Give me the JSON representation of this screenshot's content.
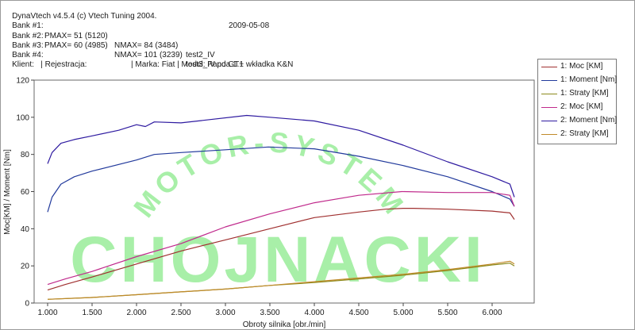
{
  "header": {
    "app_line": "DynaVtech v4.5.4 (c) Vtech Tuning 2004.",
    "date": "2009-05-08",
    "bank1": {
      "label": "Bank #1:",
      "pmax": "PMAX= 51 (5120)",
      "nmax": "NMAX= 84 (3484)",
      "desc": "test2_IV"
    },
    "bank2": {
      "label": "Bank #2:",
      "pmax": "PMAX= 60 (4985)",
      "nmax": "NMAX= 101 (3239)",
      "desc": "test3_IV po GT+ wkładka K&N"
    },
    "bank3": "Bank #3:",
    "bank4": "Bank #4:",
    "client_line": "Klient:   | Rejestracja:                    | Marka: Fiat | Model: Panda 1.1"
  },
  "watermark": {
    "arc_text": "MOTOR-SYSTEM",
    "main_text": "CHOJNACKI"
  },
  "colors": {
    "moc1": "#a03030",
    "moment1": "#223a9c",
    "straty1": "#8c8a1c",
    "moc2": "#c02a8c",
    "moment2": "#2e1aa0",
    "straty2": "#c08a2a",
    "watermark": "#a8efa8"
  },
  "chart_data": {
    "type": "line",
    "title": "",
    "xlabel": "Obroty silnika [obr./min]",
    "ylabel": "Moc[KM] / Moment [Nm]",
    "xlim": [
      1000,
      6300
    ],
    "ylim": [
      0,
      120
    ],
    "x_ticks": [
      "1.000",
      "1.500",
      "2.000",
      "2.500",
      "3.000",
      "3.500",
      "4.000",
      "4.500",
      "5.000",
      "5.500",
      "6.000"
    ],
    "y_ticks": [
      "0",
      "20",
      "40",
      "60",
      "80",
      "100",
      "120"
    ],
    "grid": false,
    "legend_position": "top-right",
    "series": [
      {
        "name": "1: Moc [KM]",
        "color": "#a03030",
        "x": [
          1000,
          1200,
          1500,
          2000,
          2500,
          3000,
          3500,
          4000,
          4500,
          4800,
          5000,
          5120,
          5500,
          6000,
          6200,
          6250
        ],
        "y": [
          7,
          10,
          14,
          21,
          28,
          34,
          40,
          46,
          49,
          50.5,
          51,
          51,
          50.5,
          49.5,
          48.5,
          45
        ]
      },
      {
        "name": "1: Moment [Nm]",
        "color": "#223a9c",
        "x": [
          1000,
          1050,
          1150,
          1300,
          1500,
          2000,
          2200,
          2500,
          3000,
          3484,
          4000,
          4500,
          5000,
          5500,
          6000,
          6200,
          6250
        ],
        "y": [
          49,
          57,
          64,
          68,
          71,
          77,
          80,
          81,
          82.5,
          84,
          83,
          79,
          74,
          68,
          60,
          56,
          52
        ]
      },
      {
        "name": "1: Straty [KM]",
        "color": "#8c8a1c",
        "x": [
          1000,
          1500,
          2000,
          2500,
          3000,
          3500,
          4000,
          4500,
          5000,
          5500,
          6000,
          6200,
          6250
        ],
        "y": [
          2,
          3,
          4.5,
          6,
          7.5,
          9.5,
          11,
          13,
          15,
          17.5,
          20.5,
          21.5,
          20
        ]
      },
      {
        "name": "2: Moc [KM]",
        "color": "#c02a8c",
        "x": [
          1000,
          1200,
          1500,
          2000,
          2500,
          3000,
          3500,
          4000,
          4500,
          4985,
          5500,
          6000,
          6200,
          6250
        ],
        "y": [
          10,
          13,
          17,
          25,
          32,
          41,
          48,
          54,
          58,
          60,
          59.5,
          59.5,
          58,
          52
        ]
      },
      {
        "name": "2: Moment [Nm]",
        "color": "#2e1aa0",
        "x": [
          1000,
          1050,
          1150,
          1300,
          1500,
          1800,
          2000,
          2100,
          2200,
          2500,
          3239,
          3500,
          4000,
          4500,
          5000,
          5500,
          6000,
          6200,
          6250
        ],
        "y": [
          75,
          81,
          86,
          88,
          90,
          93,
          96,
          95,
          97.5,
          97,
          101,
          100,
          98,
          93,
          85,
          76,
          68,
          64,
          57
        ]
      },
      {
        "name": "2: Straty [KM]",
        "color": "#c08a2a",
        "x": [
          1000,
          1500,
          2000,
          2500,
          3000,
          3500,
          4000,
          4500,
          5000,
          5500,
          6000,
          6200,
          6250
        ],
        "y": [
          2,
          3,
          4.5,
          6,
          7.5,
          9.5,
          11.5,
          13.5,
          15.5,
          18,
          21,
          22.5,
          21
        ]
      }
    ]
  }
}
